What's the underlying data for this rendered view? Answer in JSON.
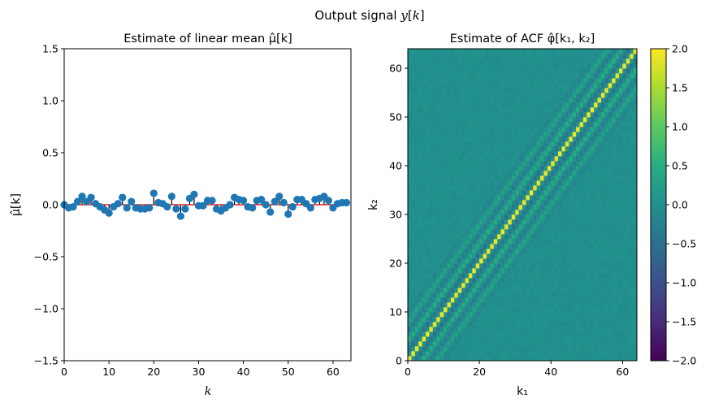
{
  "figure": {
    "suptitle": "Output signal y[k]"
  },
  "chart_data": [
    {
      "type": "scatter",
      "subtype": "stem",
      "title": "Estimate of linear mean μ̂[k]",
      "xlabel": "k",
      "ylabel": "μ̂[k]",
      "xlim": [
        0,
        64
      ],
      "ylim": [
        -1.5,
        1.5
      ],
      "xticks": [
        0,
        10,
        20,
        30,
        40,
        50,
        60
      ],
      "yticks": [
        -1.5,
        -1.0,
        -0.5,
        0.0,
        0.5,
        1.0,
        1.5
      ],
      "ytick_labels": [
        "−1.5",
        "−1.0",
        "−0.5",
        "0.0",
        "0.5",
        "1.0",
        "1.5"
      ],
      "baseline": 0,
      "colors": {
        "marker": "#1f77b4",
        "stem": "#000000",
        "baseline": "#d62728"
      },
      "x": [
        0,
        1,
        2,
        3,
        4,
        5,
        6,
        7,
        8,
        9,
        10,
        11,
        12,
        13,
        14,
        15,
        16,
        17,
        18,
        19,
        20,
        21,
        22,
        23,
        24,
        25,
        26,
        27,
        28,
        29,
        30,
        31,
        32,
        33,
        34,
        35,
        36,
        37,
        38,
        39,
        40,
        41,
        42,
        43,
        44,
        45,
        46,
        47,
        48,
        49,
        50,
        51,
        52,
        53,
        54,
        55,
        56,
        57,
        58,
        59,
        60,
        61,
        62,
        63
      ],
      "y": [
        0.0,
        -0.03,
        -0.02,
        0.03,
        0.08,
        0.03,
        0.07,
        0.01,
        -0.02,
        -0.05,
        -0.08,
        -0.02,
        0.01,
        0.07,
        -0.03,
        0.03,
        -0.03,
        -0.04,
        -0.04,
        -0.03,
        0.11,
        0.02,
        0.01,
        -0.02,
        0.08,
        -0.04,
        -0.11,
        -0.04,
        0.06,
        0.1,
        -0.01,
        -0.01,
        0.04,
        0.04,
        -0.04,
        -0.06,
        -0.03,
        0.0,
        0.07,
        0.05,
        0.04,
        -0.02,
        -0.03,
        0.04,
        0.05,
        0.0,
        -0.07,
        0.03,
        0.08,
        0.02,
        -0.09,
        -0.02,
        0.05,
        0.05,
        0.01,
        -0.03,
        0.05,
        0.06,
        0.08,
        0.04,
        -0.03,
        0.01,
        0.02,
        0.02
      ]
    },
    {
      "type": "heatmap",
      "title": "Estimate of ACF φ̂[k₁, k₂]",
      "xlabel": "k₁",
      "ylabel": "k₂",
      "xlim": [
        0,
        64
      ],
      "ylim": [
        0,
        64
      ],
      "xticks": [
        0,
        20,
        40,
        60
      ],
      "yticks": [
        0,
        10,
        20,
        30,
        40,
        50,
        60
      ],
      "colormap": "viridis",
      "colorbar": {
        "vmin": -2.0,
        "vmax": 2.0,
        "ticks": [
          -2.0,
          -1.5,
          -1.0,
          -0.5,
          0.0,
          0.5,
          1.0,
          1.5,
          2.0
        ],
        "tick_labels": [
          "−2.0",
          "−1.5",
          "−1.0",
          "−0.5",
          "0.0",
          "0.5",
          "1.0",
          "1.5",
          "2.0"
        ]
      },
      "grid_size": [
        64,
        64
      ],
      "band_profile": [
        {
          "lag": 0,
          "value": 1.9
        },
        {
          "lag": 1,
          "value": 0.05
        },
        {
          "lag": 2,
          "value": -0.45
        },
        {
          "lag": 3,
          "value": -0.05
        },
        {
          "lag": 4,
          "value": 0.45
        },
        {
          "lag": 5,
          "value": 0.05
        },
        {
          "lag": 6,
          "value": -0.3
        },
        {
          "lag": 7,
          "value": 0.0
        },
        {
          "lag": 8,
          "value": 0.3
        },
        {
          "lag": 9,
          "value": 0.0
        },
        {
          "lag": 10,
          "value": -0.15
        }
      ],
      "background_value": 0.0,
      "noise_amplitude": 0.06
    }
  ]
}
